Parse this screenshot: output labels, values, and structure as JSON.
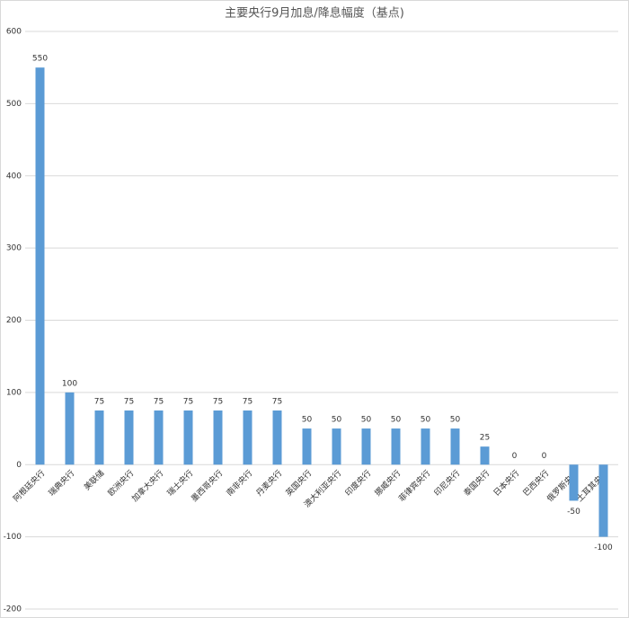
{
  "chart_data": {
    "type": "bar",
    "title": "主要央行9月加息/降息幅度（基点)",
    "categories": [
      "阿根廷央行",
      "瑞典央行",
      "美联储",
      "欧洲央行",
      "加拿大央行",
      "瑞士央行",
      "墨西哥央行",
      "南非央行",
      "丹麦央行",
      "英国央行",
      "澳大利亚央行",
      "印度央行",
      "挪威央行",
      "菲律宾央行",
      "印尼央行",
      "泰国央行",
      "日本央行",
      "巴西央行",
      "俄罗斯央行",
      "土耳其央行"
    ],
    "values": [
      550,
      100,
      75,
      75,
      75,
      75,
      75,
      75,
      75,
      50,
      50,
      50,
      50,
      50,
      50,
      25,
      0,
      0,
      -50,
      -100
    ],
    "color": "#5b9bd5",
    "ylim": [
      -200,
      600
    ],
    "yticks": [
      -200,
      -100,
      0,
      100,
      200,
      300,
      400,
      500,
      600
    ],
    "grid": true
  }
}
